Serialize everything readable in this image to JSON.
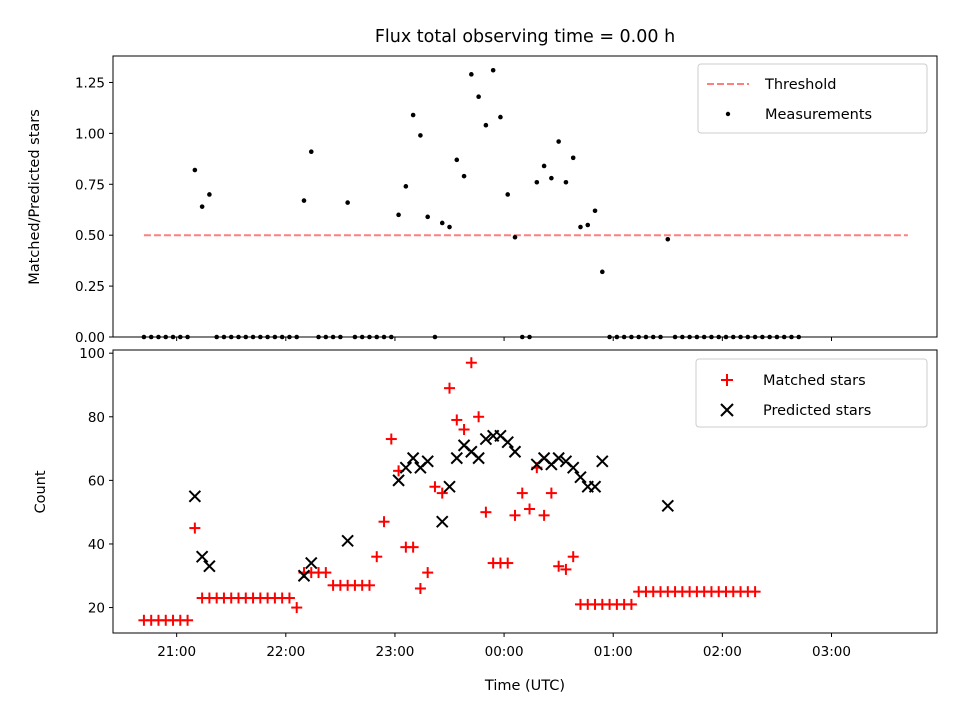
{
  "chart_data": [
    {
      "type": "scatter",
      "title": "Flux total observing time = 0.00 h",
      "ylabel": "Matched/Predicted stars",
      "xlabel": "",
      "ylim": [
        0,
        1.38
      ],
      "xlim": [
        "20:25",
        "03:58"
      ],
      "yticks": [
        "0.00",
        "0.25",
        "0.50",
        "0.75",
        "1.00",
        "1.25"
      ],
      "ytick_values": [
        0,
        0.25,
        0.5,
        0.75,
        1.0,
        1.25
      ],
      "legend": {
        "position": "upper right",
        "entries": [
          "Threshold",
          "Measurements"
        ]
      },
      "threshold": {
        "name": "Threshold",
        "value": 0.5,
        "x_start": "20:42",
        "x_end": "03:42",
        "color": "#ff7f7f"
      },
      "series": [
        {
          "name": "Measurements",
          "color": "#000000",
          "marker": "dot",
          "points": [
            [
              "20:42",
              0
            ],
            [
              "20:46",
              0
            ],
            [
              "20:50",
              0
            ],
            [
              "20:54",
              0
            ],
            [
              "20:58",
              0
            ],
            [
              "21:02",
              0
            ],
            [
              "21:06",
              0
            ],
            [
              "21:10",
              0.82
            ],
            [
              "21:14",
              0.64
            ],
            [
              "21:18",
              0.7
            ],
            [
              "21:22",
              0
            ],
            [
              "21:26",
              0
            ],
            [
              "21:30",
              0
            ],
            [
              "21:34",
              0
            ],
            [
              "21:38",
              0
            ],
            [
              "21:42",
              0
            ],
            [
              "21:46",
              0
            ],
            [
              "21:50",
              0
            ],
            [
              "21:54",
              0
            ],
            [
              "21:58",
              0
            ],
            [
              "22:02",
              0
            ],
            [
              "22:06",
              0
            ],
            [
              "22:10",
              0.67
            ],
            [
              "22:14",
              0.91
            ],
            [
              "22:18",
              0
            ],
            [
              "22:22",
              0
            ],
            [
              "22:26",
              0
            ],
            [
              "22:30",
              0
            ],
            [
              "22:34",
              0.66
            ],
            [
              "22:38",
              0
            ],
            [
              "22:42",
              0
            ],
            [
              "22:46",
              0
            ],
            [
              "22:50",
              0
            ],
            [
              "22:54",
              0
            ],
            [
              "22:58",
              0
            ],
            [
              "23:02",
              0.6
            ],
            [
              "23:06",
              0.74
            ],
            [
              "23:10",
              1.09
            ],
            [
              "23:14",
              0.99
            ],
            [
              "23:18",
              0.59
            ],
            [
              "23:22",
              0
            ],
            [
              "23:26",
              0.56
            ],
            [
              "23:30",
              0.54
            ],
            [
              "23:34",
              0.87
            ],
            [
              "23:38",
              0.79
            ],
            [
              "23:42",
              1.29
            ],
            [
              "23:46",
              1.18
            ],
            [
              "23:50",
              1.04
            ],
            [
              "23:54",
              1.31
            ],
            [
              "23:58",
              1.08
            ],
            [
              "00:02",
              0.7
            ],
            [
              "00:06",
              0.49
            ],
            [
              "00:10",
              0
            ],
            [
              "00:14",
              0
            ],
            [
              "00:18",
              0.76
            ],
            [
              "00:22",
              0.84
            ],
            [
              "00:26",
              0.78
            ],
            [
              "00:30",
              0.96
            ],
            [
              "00:34",
              0.76
            ],
            [
              "00:38",
              0.88
            ],
            [
              "00:42",
              0.54
            ],
            [
              "00:46",
              0.55
            ],
            [
              "00:50",
              0.62
            ],
            [
              "00:54",
              0.32
            ],
            [
              "00:58",
              0
            ],
            [
              "01:02",
              0
            ],
            [
              "01:06",
              0
            ],
            [
              "01:10",
              0
            ],
            [
              "01:14",
              0
            ],
            [
              "01:18",
              0
            ],
            [
              "01:22",
              0
            ],
            [
              "01:26",
              0
            ],
            [
              "01:30",
              0.48
            ],
            [
              "01:34",
              0
            ],
            [
              "01:38",
              0
            ],
            [
              "01:42",
              0
            ],
            [
              "01:46",
              0
            ],
            [
              "01:50",
              0
            ],
            [
              "01:54",
              0
            ],
            [
              "01:58",
              0
            ],
            [
              "02:02",
              0
            ],
            [
              "02:06",
              0
            ],
            [
              "02:10",
              0
            ],
            [
              "02:14",
              0
            ],
            [
              "02:18",
              0
            ],
            [
              "02:22",
              0
            ],
            [
              "02:26",
              0
            ],
            [
              "02:30",
              0
            ],
            [
              "02:34",
              0
            ],
            [
              "02:38",
              0
            ],
            [
              "02:42",
              0
            ]
          ]
        }
      ]
    },
    {
      "type": "scatter",
      "title": "",
      "xlabel": "Time (UTC)",
      "ylabel": "Count",
      "ylim": [
        12,
        101
      ],
      "xlim": [
        "20:25",
        "03:58"
      ],
      "xticks": [
        "21:00",
        "22:00",
        "23:00",
        "00:00",
        "01:00",
        "02:00",
        "03:00"
      ],
      "yticks": [
        "20",
        "40",
        "60",
        "80",
        "100"
      ],
      "ytick_values": [
        20,
        40,
        60,
        80,
        100
      ],
      "legend": {
        "position": "upper right",
        "entries": [
          "Matched stars",
          "Predicted stars"
        ]
      },
      "series": [
        {
          "name": "Matched stars",
          "color": "#ff0000",
          "marker": "plus",
          "points": [
            [
              "20:42",
              16
            ],
            [
              "20:46",
              16
            ],
            [
              "20:50",
              16
            ],
            [
              "20:54",
              16
            ],
            [
              "20:58",
              16
            ],
            [
              "21:02",
              16
            ],
            [
              "21:06",
              16
            ],
            [
              "21:10",
              45
            ],
            [
              "21:14",
              23
            ],
            [
              "21:18",
              23
            ],
            [
              "21:22",
              23
            ],
            [
              "21:26",
              23
            ],
            [
              "21:30",
              23
            ],
            [
              "21:34",
              23
            ],
            [
              "21:38",
              23
            ],
            [
              "21:42",
              23
            ],
            [
              "21:46",
              23
            ],
            [
              "21:50",
              23
            ],
            [
              "21:54",
              23
            ],
            [
              "21:58",
              23
            ],
            [
              "22:02",
              23
            ],
            [
              "22:06",
              20
            ],
            [
              "22:10",
              31
            ],
            [
              "22:14",
              31
            ],
            [
              "22:18",
              31
            ],
            [
              "22:22",
              31
            ],
            [
              "22:26",
              27
            ],
            [
              "22:30",
              27
            ],
            [
              "22:34",
              27
            ],
            [
              "22:38",
              27
            ],
            [
              "22:42",
              27
            ],
            [
              "22:46",
              27
            ],
            [
              "22:50",
              36
            ],
            [
              "22:54",
              47
            ],
            [
              "22:58",
              73
            ],
            [
              "23:02",
              63
            ],
            [
              "23:06",
              39
            ],
            [
              "23:10",
              39
            ],
            [
              "23:14",
              26
            ],
            [
              "23:18",
              31
            ],
            [
              "23:22",
              58
            ],
            [
              "23:26",
              56
            ],
            [
              "23:30",
              89
            ],
            [
              "23:34",
              79
            ],
            [
              "23:38",
              76
            ],
            [
              "23:42",
              97
            ],
            [
              "23:46",
              80
            ],
            [
              "23:50",
              50
            ],
            [
              "23:54",
              34
            ],
            [
              "23:58",
              34
            ],
            [
              "00:02",
              34
            ],
            [
              "00:06",
              49
            ],
            [
              "00:10",
              56
            ],
            [
              "00:14",
              51
            ],
            [
              "00:18",
              64
            ],
            [
              "00:22",
              49
            ],
            [
              "00:26",
              56
            ],
            [
              "00:30",
              33
            ],
            [
              "00:34",
              32
            ],
            [
              "00:38",
              36
            ],
            [
              "00:42",
              21
            ],
            [
              "00:46",
              21
            ],
            [
              "00:50",
              21
            ],
            [
              "00:54",
              21
            ],
            [
              "00:58",
              21
            ],
            [
              "01:02",
              21
            ],
            [
              "01:06",
              21
            ],
            [
              "01:10",
              21
            ],
            [
              "01:14",
              25
            ],
            [
              "01:18",
              25
            ],
            [
              "01:22",
              25
            ],
            [
              "01:26",
              25
            ],
            [
              "01:30",
              25
            ],
            [
              "01:34",
              25
            ],
            [
              "01:38",
              25
            ],
            [
              "01:42",
              25
            ],
            [
              "01:46",
              25
            ],
            [
              "01:50",
              25
            ],
            [
              "01:54",
              25
            ],
            [
              "01:58",
              25
            ],
            [
              "02:02",
              25
            ],
            [
              "02:06",
              25
            ],
            [
              "02:10",
              25
            ],
            [
              "02:14",
              25
            ],
            [
              "02:18",
              25
            ]
          ]
        },
        {
          "name": "Predicted stars",
          "color": "#000000",
          "marker": "x",
          "points": [
            [
              "21:10",
              55
            ],
            [
              "21:14",
              36
            ],
            [
              "21:18",
              33
            ],
            [
              "22:10",
              30
            ],
            [
              "22:14",
              34
            ],
            [
              "22:34",
              41
            ],
            [
              "23:02",
              60
            ],
            [
              "23:06",
              64
            ],
            [
              "23:10",
              67
            ],
            [
              "23:14",
              64
            ],
            [
              "23:18",
              66
            ],
            [
              "23:26",
              47
            ],
            [
              "23:30",
              58
            ],
            [
              "23:34",
              67
            ],
            [
              "23:38",
              71
            ],
            [
              "23:42",
              69
            ],
            [
              "23:46",
              67
            ],
            [
              "23:50",
              73
            ],
            [
              "23:54",
              74
            ],
            [
              "23:58",
              74
            ],
            [
              "00:02",
              72
            ],
            [
              "00:06",
              69
            ],
            [
              "00:18",
              65
            ],
            [
              "00:22",
              67
            ],
            [
              "00:26",
              65
            ],
            [
              "00:30",
              67
            ],
            [
              "00:34",
              66
            ],
            [
              "00:38",
              64
            ],
            [
              "00:42",
              61
            ],
            [
              "00:46",
              58
            ],
            [
              "00:50",
              58
            ],
            [
              "00:54",
              66
            ],
            [
              "01:30",
              52
            ]
          ]
        }
      ]
    }
  ]
}
